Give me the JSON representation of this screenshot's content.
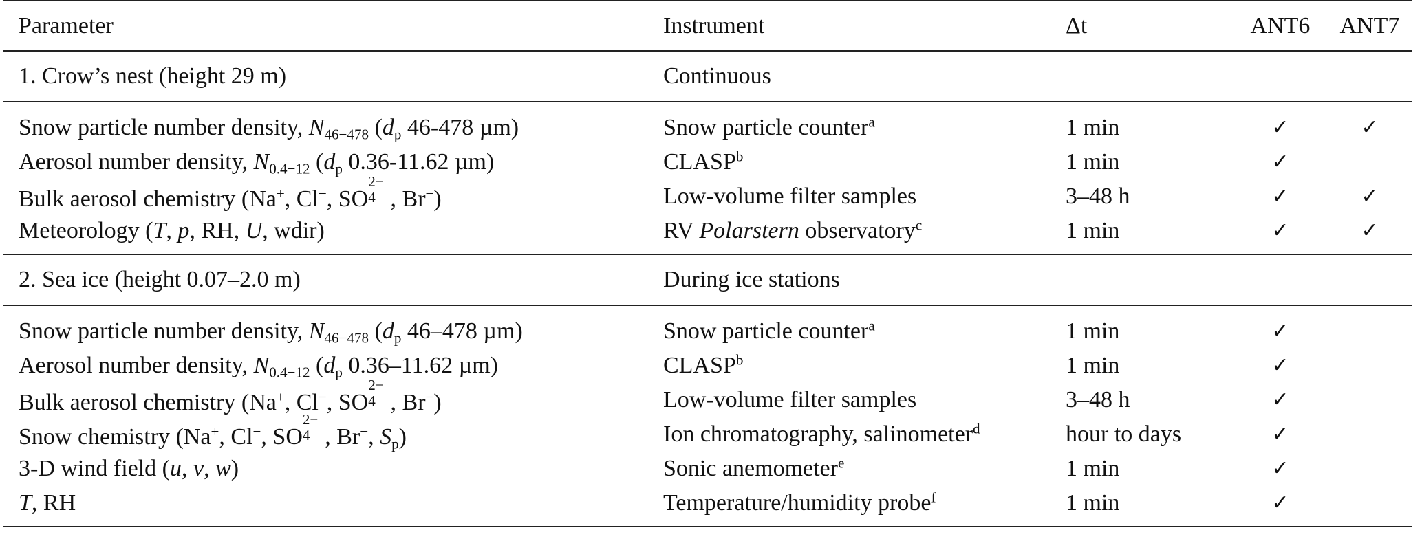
{
  "columns": {
    "parameter": "Parameter",
    "instrument": "Instrument",
    "dt": "Δt",
    "ant6": "ANT6",
    "ant7": "ANT7"
  },
  "section1": {
    "title": "1. Crow’s nest (height 29 m)",
    "mode": "Continuous"
  },
  "section2": {
    "title": "2. Sea ice (height 0.07–2.0 m)",
    "mode": "During ice stations"
  },
  "check_symbol": "✓",
  "rows1": [
    {
      "p_a": "Snow particle number density, ",
      "p_sym": "N",
      "p_sub": "46−478",
      "p_b": " (",
      "p_d": "d",
      "p_dsub": "p",
      "p_c": " 46-478 µm)",
      "instrument": "Snow particle counter",
      "inst_sup": "a",
      "dt": "1 min",
      "ant6": "✓",
      "ant7": "✓"
    },
    {
      "p_a": "Aerosol number density, ",
      "p_sym": "N",
      "p_sub": "0.4−12",
      "p_b": " (",
      "p_d": "d",
      "p_dsub": "p",
      "p_c": " 0.36-11.62 µm)",
      "instrument": "CLASP",
      "inst_sup": "b",
      "dt": "1 min",
      "ant6": "✓",
      "ant7": ""
    },
    {
      "chem_a": "Bulk aerosol chemistry (Na",
      "chem_b": ", Cl",
      "chem_c": ", SO",
      "chem_d": ", Br",
      "chem_e": ")",
      "sup_plus": "+",
      "sup_minus": "−",
      "so4_sup": "2−",
      "so4_sub": "4",
      "instrument": "Low-volume filter samples",
      "dt": "3–48 h",
      "ant6": "✓",
      "ant7": "✓"
    },
    {
      "met_a": "Meteorology (",
      "met_T": "T",
      "met_b": ", ",
      "met_p": "p",
      "met_c": ", RH, ",
      "met_U": "U",
      "met_d": ", wdir)",
      "inst_a": "RV ",
      "inst_italic": "Polarstern",
      "inst_b": " observatory",
      "inst_sup": "c",
      "dt": "1 min",
      "ant6": "✓",
      "ant7": "✓"
    }
  ],
  "rows2": [
    {
      "p_a": "Snow particle number density, ",
      "p_sym": "N",
      "p_sub": "46−478",
      "p_b": " (",
      "p_d": "d",
      "p_dsub": "p",
      "p_c": " 46–478 µm)",
      "instrument": "Snow particle counter",
      "inst_sup": "a",
      "dt": "1 min",
      "ant6": "✓",
      "ant7": ""
    },
    {
      "p_a": "Aerosol number density, ",
      "p_sym": "N",
      "p_sub": "0.4−12",
      "p_b": " (",
      "p_d": "d",
      "p_dsub": "p",
      "p_c": " 0.36–11.62 µm)",
      "instrument": "CLASP",
      "inst_sup": "b",
      "dt": "1 min",
      "ant6": "✓",
      "ant7": ""
    },
    {
      "chem_a": "Bulk aerosol chemistry (Na",
      "chem_b": ", Cl",
      "chem_c": ", SO",
      "chem_d": ", Br",
      "chem_e": ")",
      "sup_plus": "+",
      "sup_minus": "−",
      "so4_sup": "2−",
      "so4_sub": "4",
      "instrument": "Low-volume filter samples",
      "dt": "3–48 h",
      "ant6": "✓",
      "ant7": ""
    },
    {
      "chem_a": "Snow chemistry (Na",
      "chem_b": ", Cl",
      "chem_c": ", SO",
      "chem_d": ", Br",
      "chem_e": ", ",
      "sup_plus": "+",
      "sup_minus": "−",
      "so4_sup": "2−",
      "so4_sub": "4",
      "sp_sym": "S",
      "sp_sub": "p",
      "sp_close": ")",
      "instrument": "Ion chromatography, salinometer",
      "inst_sup": "d",
      "dt": "hour to days",
      "ant6": "✓",
      "ant7": ""
    },
    {
      "w_a": "3-D wind field (",
      "w_u": "u",
      "w_b": ", ",
      "w_v": "v",
      "w_c": ", ",
      "w_w": "w",
      "w_d": ")",
      "instrument": "Sonic anemometer",
      "inst_sup": "e",
      "dt": "1 min",
      "ant6": "✓",
      "ant7": ""
    },
    {
      "t_T": "T",
      "t_rest": ", RH",
      "instrument": "Temperature/humidity probe",
      "inst_sup": "f",
      "dt": "1 min",
      "ant6": "✓",
      "ant7": ""
    }
  ]
}
